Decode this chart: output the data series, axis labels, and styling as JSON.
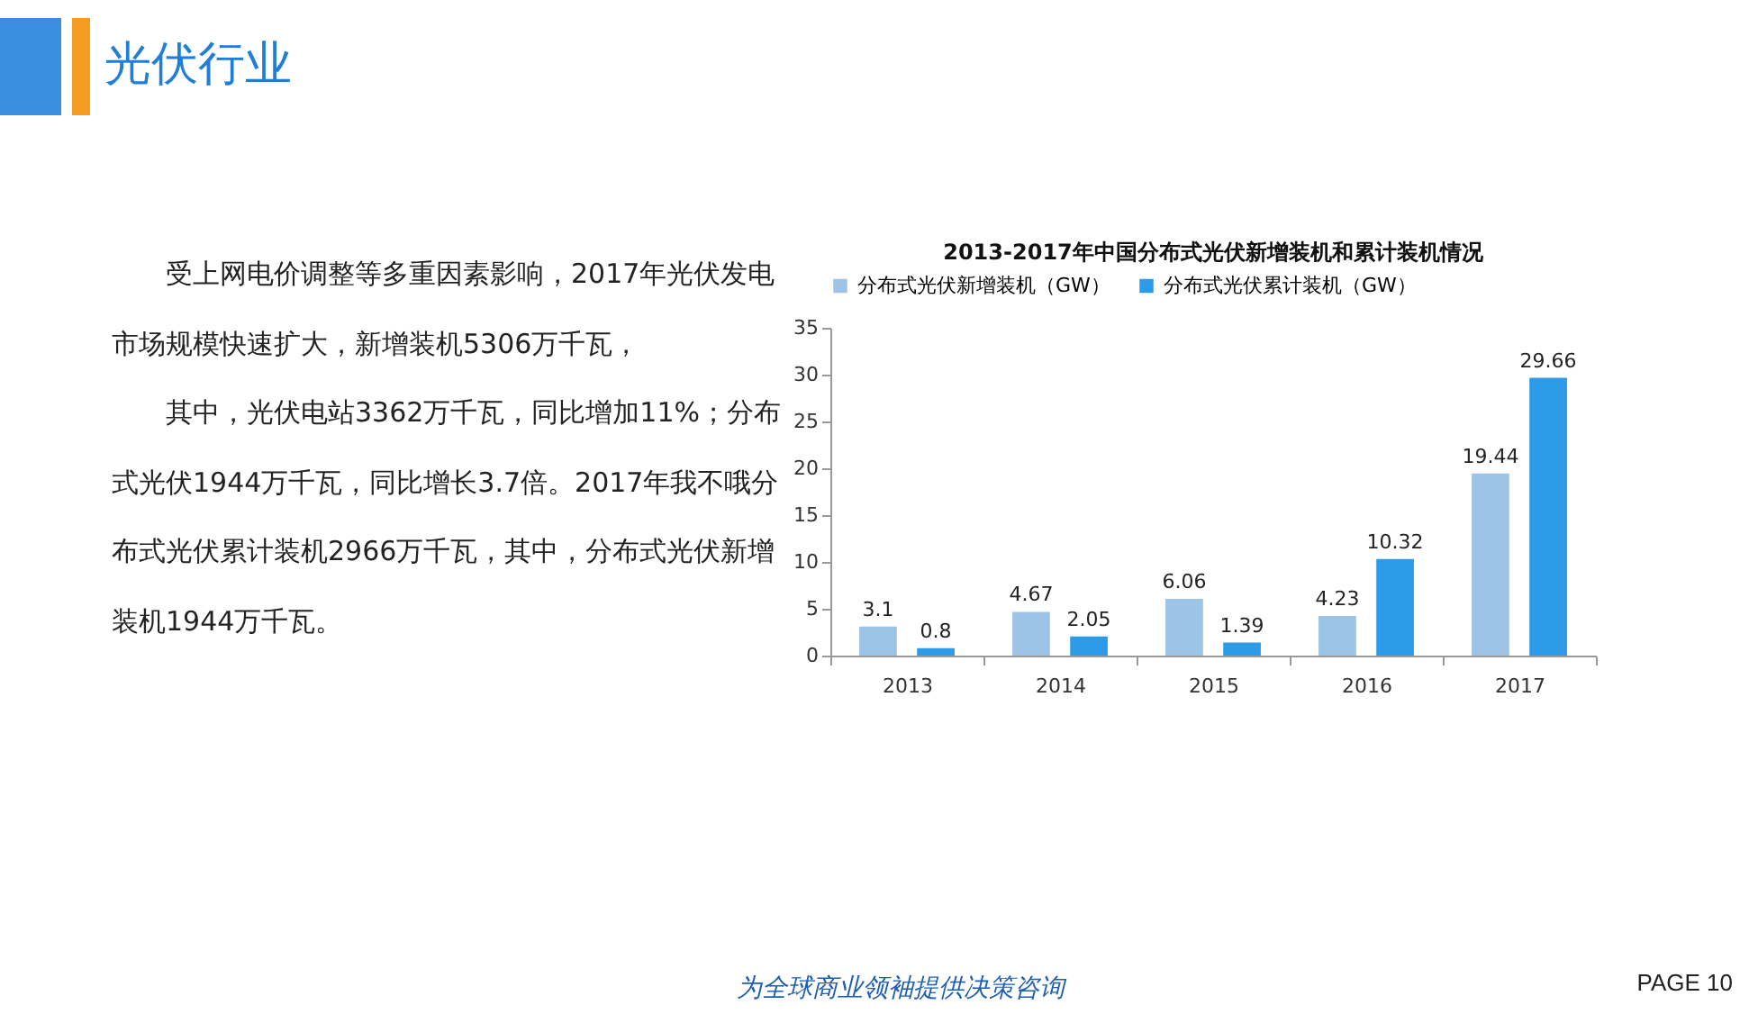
{
  "chart_data": [
    {
      "type": "other",
      "title": "光伏行业",
      "annotations": [
        "受上网电价调整等多重因素影响，2017年光伏发电市场规模快速扩大，新增装机5306万千瓦，",
        "其中，光伏电站3362万千瓦，同比增加11%；分布式光伏1944万千瓦，同比增长3.7倍。2017年我不哦分布式光伏累计装机2966万千瓦，其中，分布式光伏新增装机1944万千瓦。",
        "为全球商业领袖提供决策咨询",
        "PAGE  10"
      ]
    },
    {
      "type": "bar",
      "title": "2013-2017年中国分布式光伏新增装机和累计装机情况",
      "categories": [
        "2013",
        "2014",
        "2015",
        "2016",
        "2017"
      ],
      "series": [
        {
          "name": "分布式光伏新增装机（GW）",
          "color": "#9dc3e6",
          "values": [
            3.1,
            4.67,
            6.06,
            4.23,
            19.44
          ]
        },
        {
          "name": "分布式光伏累计装机（GW）",
          "color": "#2e9be8",
          "values": [
            0.8,
            2.05,
            1.39,
            10.32,
            29.66
          ]
        }
      ],
      "ylim": [
        0,
        35
      ],
      "yticks": [
        0,
        5,
        10,
        15,
        20,
        25,
        30,
        35
      ],
      "grid": false,
      "legend": "top",
      "data_labels": true
    }
  ]
}
